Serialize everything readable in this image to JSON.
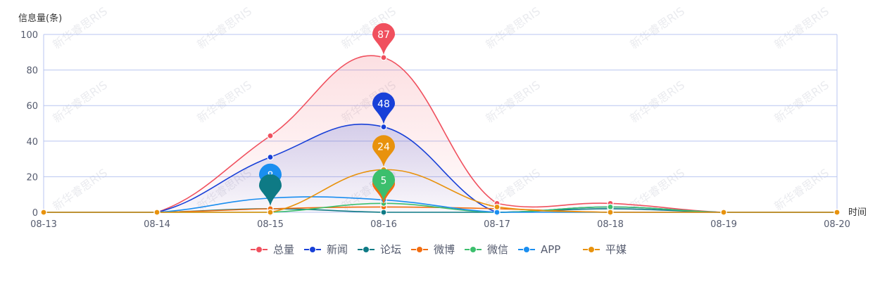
{
  "chart_data": {
    "type": "line",
    "ylabel": "信息量(条)",
    "xlabel": "时间",
    "categories": [
      "08-13",
      "08-14",
      "08-15",
      "08-16",
      "08-17",
      "08-18",
      "08-19",
      "08-20"
    ],
    "ylim": [
      0,
      100
    ],
    "yticks": [
      0,
      20,
      40,
      60,
      80,
      100
    ],
    "grid": true,
    "legend_position": "bottom",
    "series": [
      {
        "name": "总量",
        "color": "#f0505e",
        "values": [
          0,
          0,
          43,
          87,
          5,
          5,
          0,
          0
        ],
        "area": true
      },
      {
        "name": "新闻",
        "color": "#1840d8",
        "values": [
          0,
          0,
          31,
          48,
          0,
          3,
          0,
          0
        ],
        "area": true
      },
      {
        "name": "论坛",
        "color": "#0e7a85",
        "values": [
          0,
          0,
          2,
          0,
          0,
          2,
          0,
          0
        ]
      },
      {
        "name": "微博",
        "color": "#f26d10",
        "values": [
          0,
          0,
          2,
          3,
          2,
          0,
          0,
          0
        ]
      },
      {
        "name": "微信",
        "color": "#3cbf6d",
        "values": [
          0,
          0,
          0,
          5,
          0,
          3,
          0,
          0
        ]
      },
      {
        "name": "APP",
        "color": "#1a8ef0",
        "values": [
          0,
          0,
          8,
          7,
          0,
          0,
          0,
          0
        ]
      },
      {
        "name": "平媒",
        "color": "#e8920d",
        "values": [
          0,
          0,
          0,
          24,
          3,
          0,
          0,
          0
        ]
      }
    ],
    "markers": [
      {
        "series": "总量",
        "x": "08-16",
        "value": 87,
        "label": "87"
      },
      {
        "series": "新闻",
        "x": "08-16",
        "value": 48,
        "label": "48"
      },
      {
        "series": "平媒",
        "x": "08-16",
        "value": 24,
        "label": "24"
      },
      {
        "series": "APP",
        "x": "08-15",
        "value": 8,
        "label": "8"
      },
      {
        "series": "微博",
        "x": "08-16",
        "value": 3,
        "label": ""
      },
      {
        "series": "论坛",
        "x": "08-15",
        "value": 2,
        "label": ""
      },
      {
        "series": "微信",
        "x": "08-16",
        "value": 5,
        "label": "5"
      }
    ]
  },
  "watermark_text": "新华睿思RIS"
}
